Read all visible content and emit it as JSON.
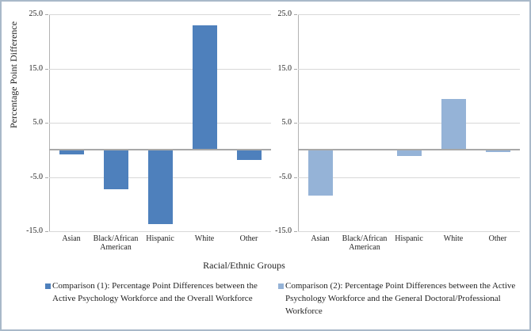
{
  "figure": {
    "border_color": "#a9b9c9",
    "background": "#ffffff"
  },
  "chart_data": {
    "type": "bar",
    "title": "",
    "ylabel": "Percentage Point Difference",
    "xlabel": "Racial/Ethnic Groups",
    "ylim": [
      -15.0,
      25.0
    ],
    "yticks": [
      25.0,
      15.0,
      5.0,
      -5.0,
      -15.0
    ],
    "ytick_labels": [
      "25.0",
      "15.0",
      "5.0",
      "-5.0",
      "-15.0"
    ],
    "categories": [
      "Asian",
      "Black/African American",
      "Hispanic",
      "White",
      "Other"
    ],
    "grid": true,
    "legend_position": "bottom",
    "panels": [
      {
        "name": "comparison-1",
        "series_color": "#4e80bc",
        "values": [
          -0.9,
          -7.3,
          -13.7,
          23.0,
          -1.9
        ],
        "legend": "Comparison (1): Percentage Point Differences between the Active Psychology Workforce and the Overall Workforce"
      },
      {
        "name": "comparison-2",
        "series_color": "#95b3d7",
        "values": [
          -8.5,
          0.0,
          -1.1,
          9.4,
          -0.4
        ],
        "legend": "Comparison (2): Percentage Point Differences between the Active Psychology Workforce and the General Doctoral/Professional Workforce"
      }
    ]
  }
}
